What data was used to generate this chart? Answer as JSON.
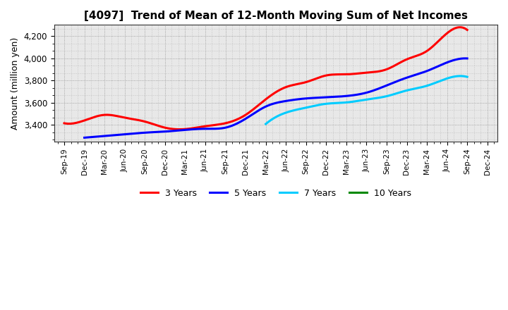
{
  "title": "[4097]  Trend of Mean of 12-Month Moving Sum of Net Incomes",
  "ylabel": "Amount (million yen)",
  "background_color": "#ffffff",
  "plot_bg_color": "#e8e8e8",
  "grid_color": "#888888",
  "ylim": [
    3250,
    4300
  ],
  "yticks": [
    3400,
    3600,
    3800,
    4000,
    4200
  ],
  "legend_entries": [
    "3 Years",
    "5 Years",
    "7 Years",
    "10 Years"
  ],
  "legend_colors": [
    "#ff0000",
    "#0000ff",
    "#00ccff",
    "#008800"
  ],
  "x_labels": [
    "Sep-19",
    "Dec-19",
    "Mar-20",
    "Jun-20",
    "Sep-20",
    "Dec-20",
    "Mar-21",
    "Jun-21",
    "Sep-21",
    "Dec-21",
    "Mar-22",
    "Jun-22",
    "Sep-22",
    "Dec-22",
    "Mar-23",
    "Jun-23",
    "Sep-23",
    "Dec-23",
    "Mar-24",
    "Jun-24",
    "Sep-24",
    "Dec-24"
  ],
  "series_3y": {
    "x_indices": [
      0,
      1,
      2,
      3,
      4,
      5,
      6,
      7,
      8,
      9,
      10,
      11,
      12,
      13,
      14,
      15,
      16,
      17,
      18,
      19,
      20
    ],
    "y": [
      3415,
      3440,
      3490,
      3465,
      3430,
      3375,
      3362,
      3388,
      3415,
      3490,
      3630,
      3740,
      3785,
      3845,
      3855,
      3870,
      3900,
      3990,
      4065,
      4225,
      4255
    ]
  },
  "series_5y": {
    "x_indices": [
      1,
      2,
      3,
      4,
      5,
      6,
      7,
      8,
      9,
      10,
      11,
      12,
      13,
      14,
      15,
      16,
      17,
      18,
      19,
      20
    ],
    "y": [
      3285,
      3300,
      3315,
      3330,
      3340,
      3355,
      3365,
      3375,
      3455,
      3565,
      3615,
      3638,
      3648,
      3660,
      3690,
      3755,
      3825,
      3885,
      3962,
      3998
    ]
  },
  "series_7y": {
    "x_indices": [
      10,
      11,
      12,
      13,
      14,
      15,
      16,
      17,
      18,
      19,
      20
    ],
    "y": [
      3408,
      3510,
      3555,
      3590,
      3602,
      3628,
      3658,
      3710,
      3752,
      3818,
      3832
    ]
  },
  "series_10y": {
    "x_indices": [],
    "y": []
  }
}
